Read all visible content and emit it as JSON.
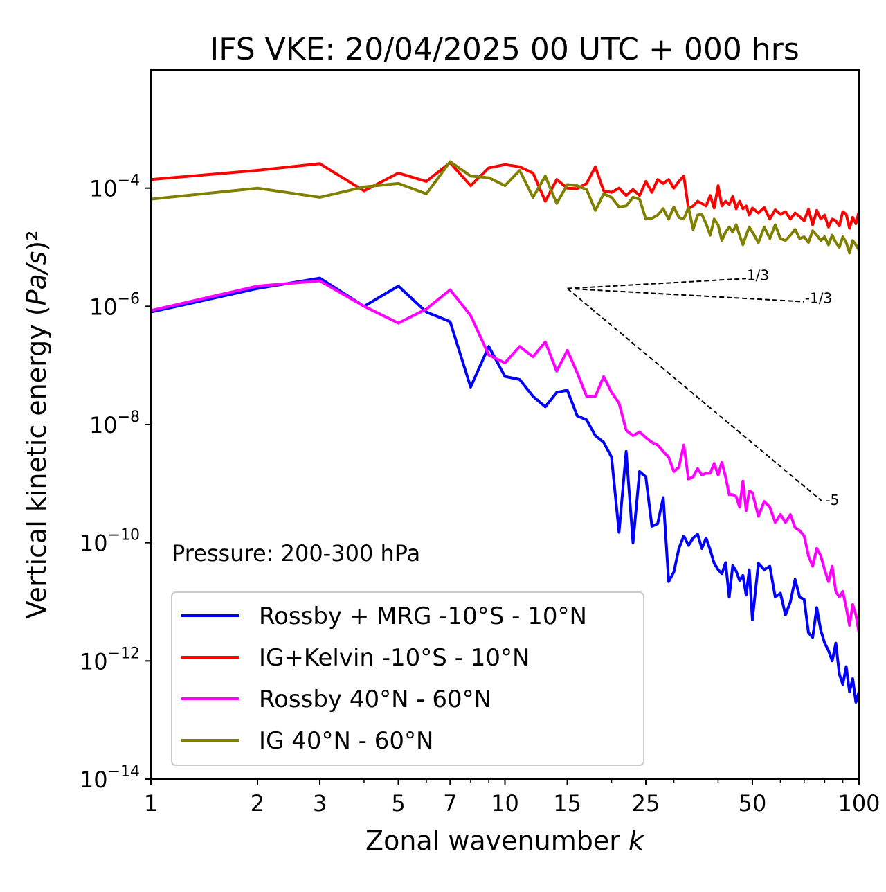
{
  "chart_data": {
    "type": "line",
    "title": "IFS VKE: 20/04/2025 00 UTC + 000 hrs",
    "xlabel": "Zonal wavenumber k",
    "ylabel": "Vertical kinetic energy (Pa/s)²",
    "xscale": "log",
    "yscale": "log",
    "xlim": [
      1,
      100
    ],
    "ylim": [
      1e-14,
      0.01
    ],
    "xticks": [
      1,
      2,
      3,
      5,
      7,
      10,
      15,
      25,
      50,
      100
    ],
    "yticks": [
      -14,
      -12,
      -10,
      -8,
      -6,
      -4
    ],
    "annotation": "Pressure: 200-300 hPa",
    "legend_position": "lower-left",
    "grid": false,
    "series": [
      {
        "name": "Rossby + MRG -10°S - 10°N",
        "color": "#0000ff",
        "x": [
          1,
          2,
          3,
          4,
          5,
          6,
          7,
          8,
          9,
          10,
          11,
          12,
          13,
          14,
          15,
          16,
          17,
          18,
          19,
          20,
          21,
          22,
          23,
          24,
          25,
          26,
          27,
          28,
          29,
          30,
          31,
          32,
          33,
          34,
          35,
          36,
          37,
          38,
          39,
          40,
          41,
          42,
          43,
          44,
          45,
          46,
          47,
          48,
          49,
          50,
          52,
          54,
          56,
          58,
          60,
          62,
          64,
          66,
          68,
          70,
          72,
          74,
          76,
          78,
          80,
          82,
          84,
          86,
          88,
          90,
          92,
          94,
          96,
          98,
          100
        ],
        "y": [
          8e-07,
          2e-06,
          3e-06,
          1e-06,
          2.2e-06,
          8e-07,
          5.5e-07,
          4.3e-08,
          2.1e-07,
          6.5e-08,
          5.8e-08,
          3e-08,
          2e-08,
          3.5e-08,
          3.8e-08,
          1.4e-08,
          1.2e-08,
          6.5e-09,
          5e-09,
          2.8e-09,
          1.5e-10,
          3.5e-09,
          1e-10,
          1.6e-09,
          1.3e-09,
          1.9e-10,
          2.1e-10,
          5.8e-10,
          2.2e-11,
          3.2e-11,
          8e-11,
          1.3e-10,
          9e-11,
          1.2e-10,
          1.4e-10,
          8e-11,
          1.2e-10,
          7.5e-11,
          4.5e-11,
          3.5e-11,
          3e-11,
          4.6e-11,
          1.2e-11,
          4.1e-11,
          3.3e-11,
          2.3e-11,
          2.8e-11,
          1.3e-11,
          3.5e-11,
          5e-12,
          4.5e-11,
          3.5e-11,
          4e-11,
          1.2e-11,
          1.4e-11,
          6e-12,
          1e-11,
          2.4e-11,
          1.2e-11,
          1.1e-11,
          3e-12,
          2.5e-12,
          8e-12,
          3.3e-12,
          2e-12,
          1.5e-12,
          1e-12,
          2e-12,
          6e-13,
          4e-13,
          8e-13,
          3e-13,
          5e-13,
          2e-13,
          3e-13
        ]
      },
      {
        "name": "IG+Kelvin -10°S - 10°N",
        "color": "#ff0000",
        "x": [
          1,
          2,
          3,
          4,
          5,
          6,
          7,
          8,
          9,
          10,
          11,
          12,
          13,
          14,
          15,
          16,
          17,
          18,
          19,
          20,
          21,
          22,
          23,
          24,
          25,
          26,
          27,
          28,
          29,
          30,
          31,
          32,
          33,
          34,
          35,
          36,
          37,
          38,
          39,
          40,
          41,
          42,
          43,
          44,
          45,
          46,
          47,
          48,
          49,
          50,
          52,
          54,
          56,
          58,
          60,
          62,
          64,
          66,
          68,
          70,
          72,
          74,
          76,
          78,
          80,
          82,
          84,
          86,
          88,
          90,
          92,
          94,
          96,
          98,
          100
        ],
        "y": [
          0.00014,
          0.0002,
          0.00026,
          9e-05,
          0.00018,
          0.00013,
          0.00027,
          0.00011,
          0.00022,
          0.00025,
          0.00023,
          0.00018,
          6e-05,
          0.00014,
          0.0001,
          9.8e-05,
          0.00012,
          0.00023,
          9e-05,
          8.5e-05,
          0.0001,
          7.5e-05,
          9.5e-05,
          7.5e-05,
          0.00013,
          8.5e-05,
          0.00014,
          0.00012,
          0.00014,
          0.0001,
          0.00013,
          0.00016,
          4.5e-05,
          5e-05,
          6e-05,
          5.5e-05,
          5e-05,
          7.5e-05,
          4.6e-05,
          0.00011,
          5e-05,
          6e-05,
          5.3e-05,
          7.2e-05,
          4.5e-05,
          6e-05,
          4.5e-05,
          5e-05,
          3.5e-05,
          4.6e-05,
          3.8e-05,
          4.7e-05,
          3e-05,
          4.3e-05,
          3.6e-05,
          4e-05,
          3e-05,
          3.8e-05,
          3.3e-05,
          2.8e-05,
          4.4e-05,
          2.4e-05,
          4.2e-05,
          3e-05,
          3.5e-05,
          2.2e-05,
          3e-05,
          2.8e-05,
          2.3e-05,
          4e-05,
          3.6e-05,
          2.1e-05,
          3.2e-05,
          2.5e-05,
          4e-05
        ]
      },
      {
        "name": "Rossby 40°N - 60°N",
        "color": "#ff00ff",
        "x": [
          1,
          2,
          3,
          4,
          5,
          6,
          7,
          8,
          9,
          10,
          11,
          12,
          13,
          14,
          15,
          16,
          17,
          18,
          19,
          20,
          21,
          22,
          23,
          24,
          25,
          26,
          27,
          28,
          29,
          30,
          31,
          32,
          33,
          34,
          35,
          36,
          37,
          38,
          39,
          40,
          41,
          42,
          43,
          44,
          45,
          46,
          47,
          48,
          49,
          50,
          52,
          54,
          56,
          58,
          60,
          62,
          64,
          66,
          68,
          70,
          72,
          74,
          76,
          78,
          80,
          82,
          84,
          86,
          88,
          90,
          92,
          94,
          96,
          98,
          100
        ],
        "y": [
          8.5e-07,
          2.2e-06,
          2.7e-06,
          1e-06,
          5.2e-07,
          9e-07,
          1.9e-06,
          7e-07,
          1.5e-07,
          1.1e-07,
          2.1e-07,
          1.4e-07,
          2.5e-07,
          8e-08,
          1.8e-07,
          7.5e-08,
          3e-08,
          3e-08,
          6.5e-08,
          3.5e-08,
          2.3e-08,
          8e-09,
          6.5e-09,
          7.5e-09,
          6e-09,
          5e-09,
          4.5e-09,
          3.5e-09,
          2.8e-09,
          1.6e-09,
          1.9e-09,
          4.5e-09,
          1.2e-09,
          1.3e-09,
          1.8e-09,
          1.4e-09,
          1.5e-09,
          1.5e-09,
          2.2e-09,
          1.4e-09,
          2.3e-09,
          1.3e-09,
          6.5e-10,
          6.5e-10,
          6e-10,
          4e-10,
          1.1e-09,
          3.5e-10,
          7.5e-10,
          7e-10,
          2.8e-10,
          5e-10,
          4e-10,
          2.2e-10,
          3e-10,
          2.2e-10,
          3e-10,
          1.8e-10,
          1.6e-10,
          1.3e-10,
          6e-11,
          4e-11,
          8e-11,
          6e-11,
          3.5e-11,
          2.2e-11,
          4e-11,
          1.5e-11,
          1.2e-11,
          1.5e-11,
          8e-12,
          4e-12,
          9e-12,
          6e-12,
          3e-12
        ]
      },
      {
        "name": "IG 40°N - 60°N",
        "color": "#808000",
        "x": [
          1,
          2,
          3,
          4,
          5,
          6,
          7,
          8,
          9,
          10,
          11,
          12,
          13,
          14,
          15,
          16,
          17,
          18,
          19,
          20,
          21,
          22,
          23,
          24,
          25,
          26,
          27,
          28,
          29,
          30,
          31,
          32,
          33,
          34,
          35,
          36,
          37,
          38,
          39,
          40,
          41,
          42,
          43,
          44,
          45,
          46,
          47,
          48,
          49,
          50,
          52,
          54,
          56,
          58,
          60,
          62,
          64,
          66,
          68,
          70,
          72,
          74,
          76,
          78,
          80,
          82,
          84,
          86,
          88,
          90,
          92,
          94,
          96,
          98,
          100
        ],
        "y": [
          6.5e-05,
          0.0001,
          7e-05,
          0.000105,
          0.00012,
          8e-05,
          0.00028,
          0.00016,
          0.00015,
          0.00011,
          0.0002,
          7e-05,
          0.00016,
          5.5e-05,
          0.000115,
          0.00011,
          9.5e-05,
          4.2e-05,
          8e-05,
          7e-05,
          4.8e-05,
          5e-05,
          7e-05,
          6.5e-05,
          3e-05,
          3.1e-05,
          3.5e-05,
          4.5e-05,
          3e-05,
          4.8e-05,
          3.2e-05,
          3e-05,
          4.7e-05,
          2e-05,
          3.5e-05,
          3.6e-05,
          2.5e-05,
          1.6e-05,
          3e-05,
          2.4e-05,
          1.3e-05,
          1.8e-05,
          2.2e-05,
          1.8e-05,
          2.4e-05,
          1.6e-05,
          1.1e-05,
          1.6e-05,
          2.2e-05,
          1.8e-05,
          1.2e-05,
          2.2e-05,
          1.4e-05,
          2.4e-05,
          1.4e-05,
          1.3e-05,
          1.6e-05,
          2e-05,
          1.4e-05,
          1.5e-05,
          1.2e-05,
          1.9e-05,
          1.6e-05,
          1.3e-05,
          1.5e-05,
          1.1e-05,
          1.6e-05,
          1.2e-05,
          1e-05,
          1.5e-05,
          1.2e-05,
          8e-06,
          1.3e-05,
          1.1e-05,
          9e-06
        ]
      }
    ],
    "reference_slopes": [
      {
        "label": "1/3",
        "slope": 0.3333,
        "x_start": 15,
        "y_start": 2e-06,
        "x_end": 48
      },
      {
        "label": "-1/3",
        "slope": -0.3333,
        "x_start": 15,
        "y_start": 2e-06,
        "x_end": 70
      },
      {
        "label": "-5",
        "slope": -5,
        "x_start": 15,
        "y_start": 2e-06,
        "x_end": 80
      }
    ]
  }
}
